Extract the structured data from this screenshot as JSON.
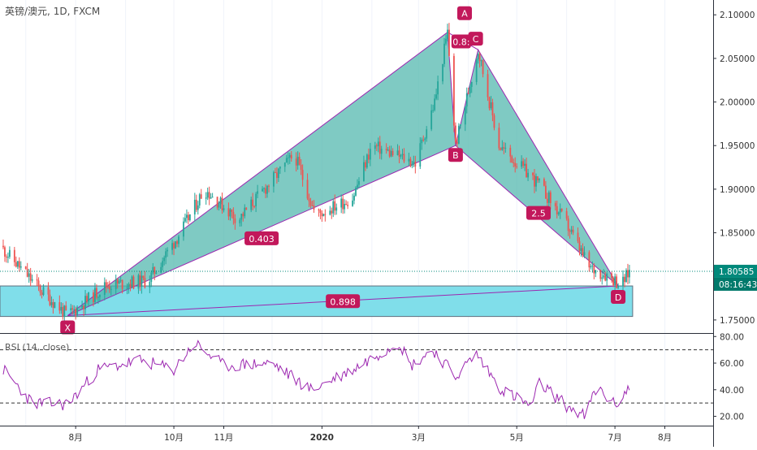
{
  "header": {
    "symbol": "英镑/澳元",
    "interval": "1D",
    "exchange": "FXCM",
    "separator": ", "
  },
  "rsi": {
    "label": "RSI (14, close)",
    "upper_band": 70,
    "lower_band": 30
  },
  "price_axis": {
    "ticks": [
      "2.10000",
      "2.05000",
      "2.00000",
      "1.95000",
      "1.90000",
      "1.85000",
      "1.75000"
    ],
    "last_price": "1.80585",
    "countdown": "08:16:43"
  },
  "rsi_axis": {
    "ticks": [
      "80.00",
      "60.00",
      "40.00",
      "20.00"
    ]
  },
  "time_axis": {
    "ticks": [
      "8月",
      "10月",
      "11月",
      "2020",
      "3月",
      "5月",
      "7月",
      "8月"
    ]
  },
  "pattern": {
    "points": {
      "X": "X",
      "A": "A",
      "B": "B",
      "C": "C",
      "D": "D"
    },
    "ratios": {
      "XB": "0.403",
      "AC": "0.8:",
      "BD": "2.5",
      "XD": "0.898"
    }
  },
  "colors": {
    "candle_up": "#26a69a",
    "candle_down": "#ef5350",
    "harmonic_fill": "#4db6ac",
    "harmonic_line": "#9c27b0",
    "label_bg": "#c2185b",
    "zone_fill": "#80deea",
    "rsi_line": "#9c27b0",
    "price_tag_bg": "#00897b",
    "countdown_bg": "#00796b"
  },
  "chart_data": [
    {
      "type": "candlestick",
      "title": "英镑/澳元, 1D, FXCM",
      "ylim": [
        1.735,
        2.117
      ],
      "x_range": [
        "2019-06-15",
        "2020-08-31"
      ],
      "last_price": 1.80585,
      "anchors": [
        {
          "date": "2019-06-15",
          "price": 1.835
        },
        {
          "date": "2019-07-10",
          "price": 1.785
        },
        {
          "date": "2019-07-27",
          "price": 1.755
        },
        {
          "date": "2019-08-20",
          "price": 1.79
        },
        {
          "date": "2019-09-15",
          "price": 1.795
        },
        {
          "date": "2019-10-05",
          "price": 1.85
        },
        {
          "date": "2019-10-20",
          "price": 1.9
        },
        {
          "date": "2019-11-10",
          "price": 1.865
        },
        {
          "date": "2019-12-15",
          "price": 1.94
        },
        {
          "date": "2019-12-28",
          "price": 1.87
        },
        {
          "date": "2020-01-20",
          "price": 1.89
        },
        {
          "date": "2020-02-01",
          "price": 1.95
        },
        {
          "date": "2020-02-28",
          "price": 1.93
        },
        {
          "date": "2020-03-11",
          "price": 2.0
        },
        {
          "date": "2020-03-19",
          "price": 2.08
        },
        {
          "date": "2020-03-24",
          "price": 1.95
        },
        {
          "date": "2020-04-07",
          "price": 2.06
        },
        {
          "date": "2020-04-20",
          "price": 1.95
        },
        {
          "date": "2020-05-15",
          "price": 1.905
        },
        {
          "date": "2020-06-01",
          "price": 1.86
        },
        {
          "date": "2020-06-15",
          "price": 1.81
        },
        {
          "date": "2020-06-28",
          "price": 1.8
        },
        {
          "date": "2020-07-05",
          "price": 1.79
        },
        {
          "date": "2020-07-10",
          "price": 1.806
        }
      ],
      "xabcd": [
        {
          "point": "X",
          "date": "2019-07-27",
          "price": 1.755
        },
        {
          "point": "A",
          "date": "2020-03-19",
          "price": 2.08
        },
        {
          "point": "B",
          "date": "2020-03-24",
          "price": 1.95
        },
        {
          "point": "C",
          "date": "2020-04-07",
          "price": 2.06
        },
        {
          "point": "D",
          "date": "2020-07-03",
          "price": 1.789
        }
      ],
      "zone": {
        "from": "2019-06-15",
        "to": "2020-07-12",
        "low": 1.754,
        "high": 1.789
      }
    },
    {
      "type": "line",
      "title": "RSI (14, close)",
      "ylim": [
        13,
        82
      ],
      "bands": [
        70,
        30
      ],
      "anchors": [
        {
          "date": "2019-06-15",
          "value": 58
        },
        {
          "date": "2019-07-05",
          "value": 30
        },
        {
          "date": "2019-07-27",
          "value": 29
        },
        {
          "date": "2019-08-15",
          "value": 55
        },
        {
          "date": "2019-09-10",
          "value": 62
        },
        {
          "date": "2019-10-01",
          "value": 55
        },
        {
          "date": "2019-10-14",
          "value": 75
        },
        {
          "date": "2019-11-01",
          "value": 58
        },
        {
          "date": "2019-12-01",
          "value": 60
        },
        {
          "date": "2019-12-25",
          "value": 40
        },
        {
          "date": "2020-01-20",
          "value": 55
        },
        {
          "date": "2020-02-05",
          "value": 67
        },
        {
          "date": "2020-02-18",
          "value": 76
        },
        {
          "date": "2020-02-25",
          "value": 58
        },
        {
          "date": "2020-03-10",
          "value": 70
        },
        {
          "date": "2020-03-24",
          "value": 50
        },
        {
          "date": "2020-04-06",
          "value": 67
        },
        {
          "date": "2020-04-20",
          "value": 42
        },
        {
          "date": "2020-05-10",
          "value": 27
        },
        {
          "date": "2020-05-15",
          "value": 45
        },
        {
          "date": "2020-06-01",
          "value": 28
        },
        {
          "date": "2020-06-12",
          "value": 20
        },
        {
          "date": "2020-06-20",
          "value": 42
        },
        {
          "date": "2020-07-01",
          "value": 28
        },
        {
          "date": "2020-07-10",
          "value": 42
        }
      ]
    }
  ]
}
